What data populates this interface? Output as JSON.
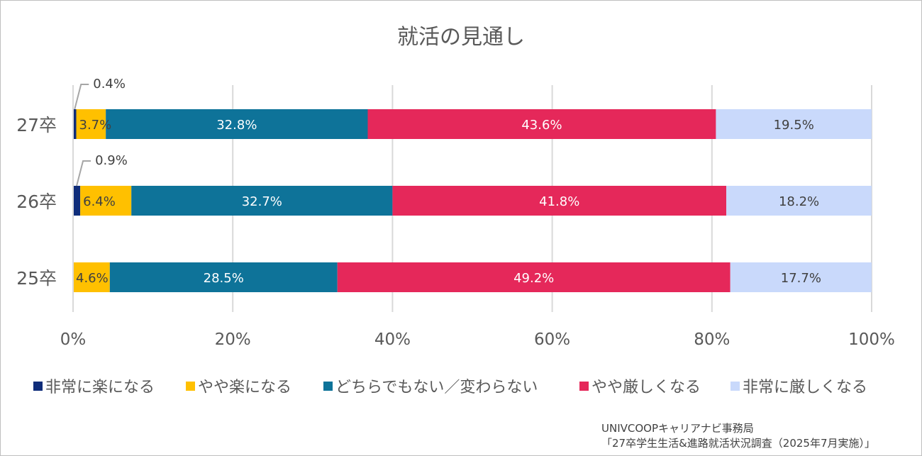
{
  "chart_data": {
    "type": "bar",
    "orientation": "horizontal-stacked-100",
    "title": "就活の見通し",
    "categories": [
      "27卒",
      "26卒",
      "25卒"
    ],
    "series": [
      {
        "name": "非常に楽になる",
        "color": "#0f2d7a",
        "values": [
          0.4,
          0.9,
          0.0
        ]
      },
      {
        "name": "やや楽になる",
        "color": "#ffc000",
        "values": [
          3.7,
          6.4,
          4.6
        ]
      },
      {
        "name": "どちらでもない／変わらない",
        "color": "#0e7399",
        "values": [
          32.8,
          32.7,
          28.5
        ]
      },
      {
        "name": "やや厳しくなる",
        "color": "#e5285a",
        "values": [
          43.6,
          41.8,
          49.2
        ]
      },
      {
        "name": "非常に厳しくなる",
        "color": "#c9d9fb",
        "values": [
          19.5,
          18.2,
          17.7
        ]
      }
    ],
    "labels": [
      [
        "0.4%",
        "3.7%",
        "32.8%",
        "43.6%",
        "19.5%"
      ],
      [
        "0.9%",
        "6.4%",
        "32.7%",
        "41.8%",
        "18.2%"
      ],
      [
        "",
        "4.6%",
        "28.5%",
        "49.2%",
        "17.7%"
      ]
    ],
    "xlim": [
      0,
      100
    ],
    "xticks": [
      "0%",
      "20%",
      "40%",
      "60%",
      "80%",
      "100%"
    ],
    "grid": true,
    "legend_position": "bottom"
  },
  "source": {
    "line1": "UNIVCOOPキャリアナビ事務局",
    "line2": "「27卒学生生活&進路就活状況調査（2025年7月実施）」"
  }
}
